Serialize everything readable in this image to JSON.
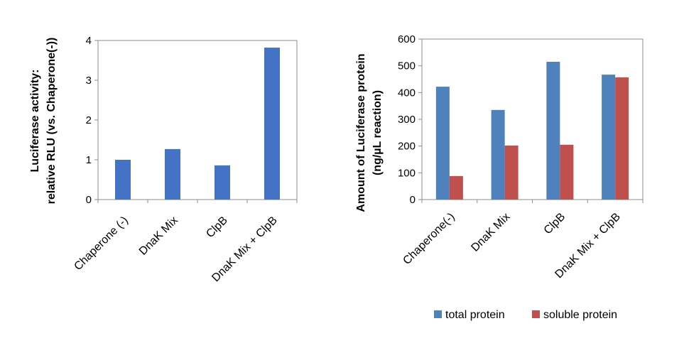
{
  "chart_data": [
    {
      "type": "bar",
      "categories": [
        "Chaperone (-)",
        "DnaK Mix",
        "ClpB",
        "DnaK Mix + ClpB"
      ],
      "values": [
        1.0,
        1.27,
        0.86,
        3.82
      ],
      "ylabel_lines": [
        "Luciferase activity:",
        "relative RLU (vs. Chaperone(-))"
      ],
      "ylim": [
        0,
        4
      ],
      "yticks": [
        "0",
        "1",
        "2",
        "3",
        "4"
      ],
      "color": "#4472C4",
      "grid": false
    },
    {
      "type": "bar",
      "categories": [
        "Chaperone(-)",
        "DnaK Mix",
        "ClpB",
        "DnaK Mix + ClpB"
      ],
      "series": [
        {
          "name": "total protein",
          "values": [
            422,
            335,
            515,
            467
          ],
          "color": "#4F81BD"
        },
        {
          "name": "soluble protein",
          "values": [
            88,
            202,
            205,
            457
          ],
          "color": "#C0504D"
        }
      ],
      "ylabel_lines": [
        "Amount of Luciferase protein",
        "(ng/µL reaction)"
      ],
      "ylim": [
        0,
        600
      ],
      "yticks": [
        "0",
        "100",
        "200",
        "300",
        "400",
        "500",
        "600"
      ],
      "legend_position": "bottom",
      "grid": false
    }
  ]
}
